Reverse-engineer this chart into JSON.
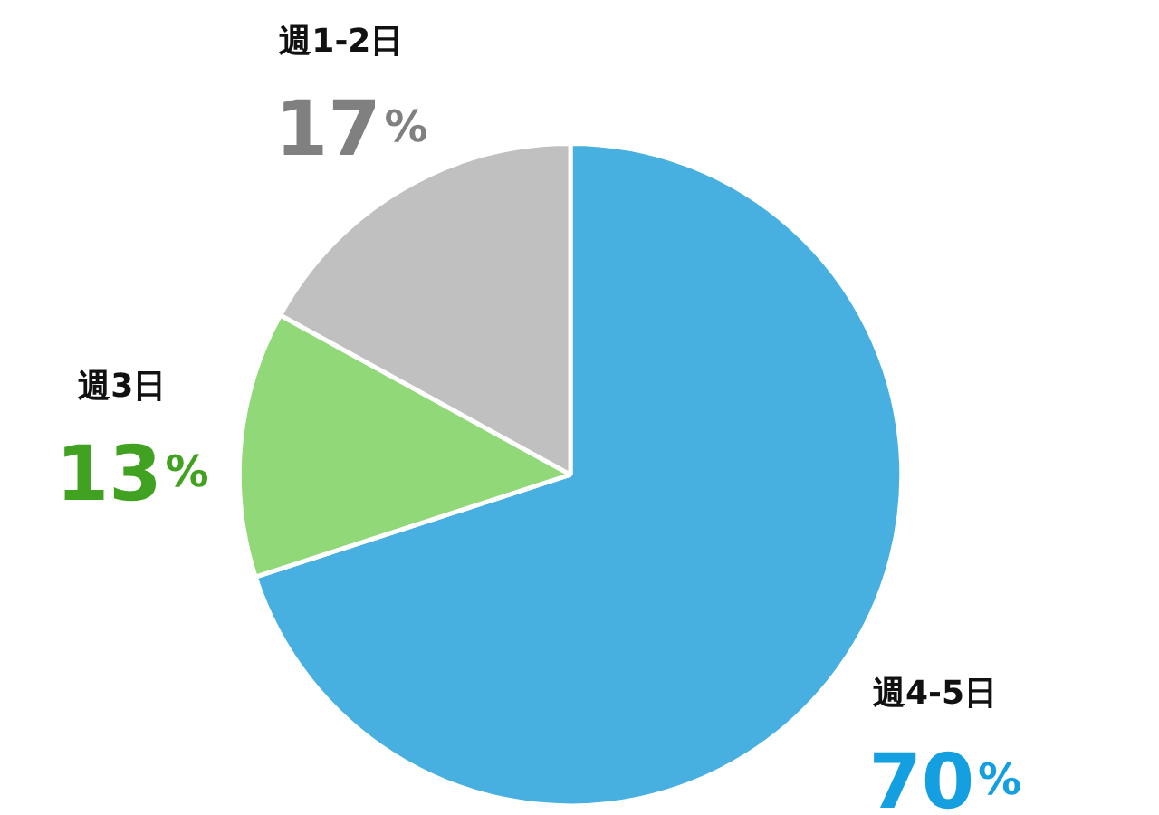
{
  "chart_data": {
    "type": "pie",
    "categories": [
      "週4-5日",
      "週3日",
      "週1-2日"
    ],
    "values": [
      70,
      13,
      17
    ],
    "colors": [
      "#48b0e0",
      "#90d878",
      "#c0c0c0"
    ],
    "value_labels": [
      "70%",
      "13%",
      "17%"
    ]
  }
}
